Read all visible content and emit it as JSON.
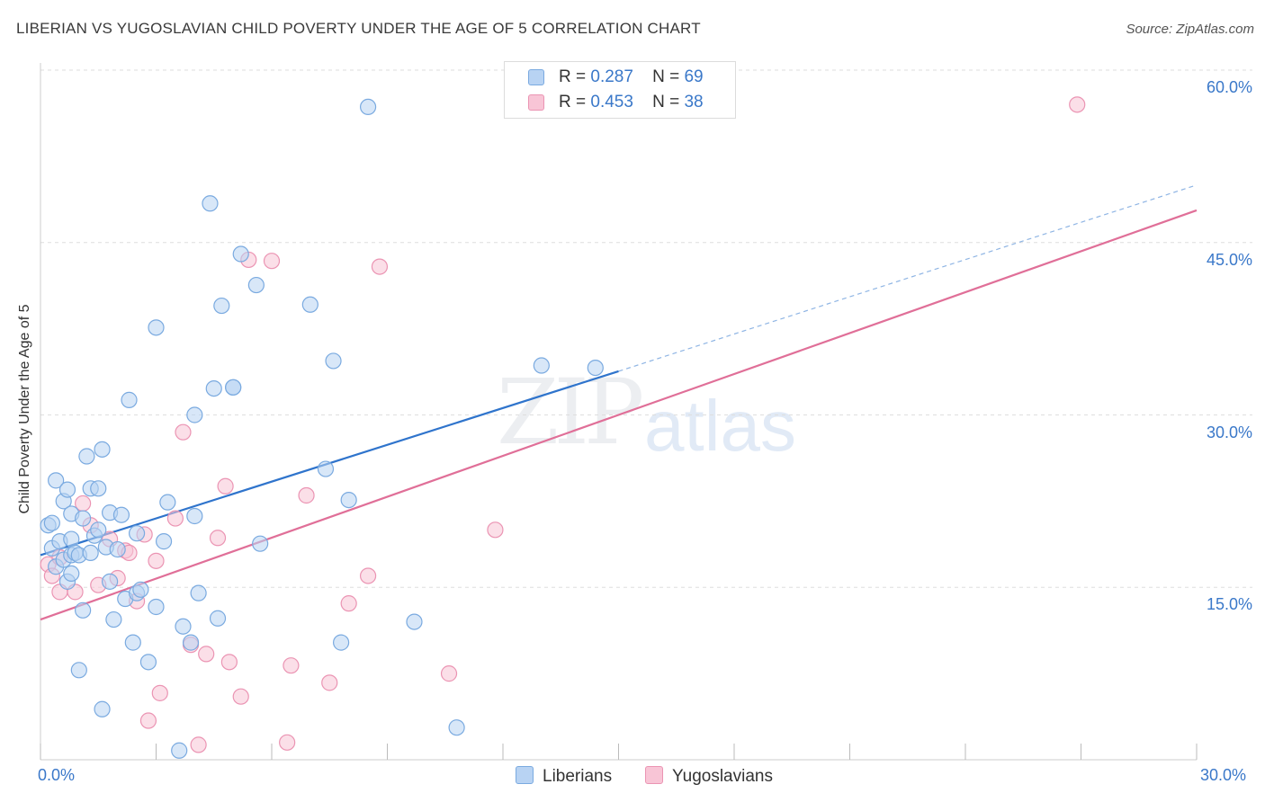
{
  "header": {
    "title": "LIBERIAN VS YUGOSLAVIAN CHILD POVERTY UNDER THE AGE OF 5 CORRELATION CHART",
    "source": "Source: ZipAtlas.com"
  },
  "watermark": {
    "part1": "ZIP",
    "part2": "atlas"
  },
  "legend": {
    "r_label": "R =",
    "n_label": "N =",
    "liberians": {
      "r": "0.287",
      "n": "69"
    },
    "yugoslavians": {
      "r": "0.453",
      "n": "38"
    }
  },
  "bottom_legend": {
    "liberians": "Liberians",
    "yugoslavians": "Yugoslavians"
  },
  "colors": {
    "liberians_fill": "#b8d3f3",
    "liberians_stroke": "#7aaae0",
    "liberians_line": "#2f74cc",
    "yugoslavians_fill": "#f8c5d6",
    "yugoslavians_stroke": "#eb94b3",
    "yugoslavians_line": "#e06f98"
  },
  "chart_data": {
    "type": "scatter",
    "title": "LIBERIAN VS YUGOSLAVIAN CHILD POVERTY UNDER THE AGE OF 5 CORRELATION CHART",
    "xlabel": "",
    "ylabel": "Child Poverty Under the Age of 5",
    "xlim": [
      0,
      30
    ],
    "ylim": [
      0,
      60
    ],
    "x_tick_labels": [
      "0.0%",
      "30.0%"
    ],
    "y_ticks": [
      15,
      30,
      45,
      60
    ],
    "y_tick_labels": [
      "15.0%",
      "30.0%",
      "45.0%",
      "60.0%"
    ],
    "grid": true,
    "legend_placement": "top-center",
    "series": [
      {
        "name": "Liberians",
        "trend": {
          "x": [
            0,
            15
          ],
          "y": [
            17.8,
            33.8
          ],
          "dashed_extension": {
            "x": [
              15,
              30
            ],
            "y": [
              33.8,
              50
            ]
          }
        },
        "points": [
          [
            0.2,
            20.4
          ],
          [
            0.3,
            18.4
          ],
          [
            0.3,
            20.6
          ],
          [
            0.4,
            16.8
          ],
          [
            0.4,
            24.3
          ],
          [
            0.5,
            19.0
          ],
          [
            0.6,
            17.4
          ],
          [
            0.6,
            22.5
          ],
          [
            0.7,
            15.5
          ],
          [
            0.7,
            23.5
          ],
          [
            0.8,
            16.2
          ],
          [
            0.8,
            19.2
          ],
          [
            0.8,
            21.4
          ],
          [
            0.8,
            17.8
          ],
          [
            0.9,
            18.0
          ],
          [
            1.0,
            17.8
          ],
          [
            1.0,
            7.8
          ],
          [
            1.1,
            21.0
          ],
          [
            1.1,
            13.0
          ],
          [
            1.2,
            26.4
          ],
          [
            1.3,
            18.0
          ],
          [
            1.3,
            23.6
          ],
          [
            1.4,
            19.5
          ],
          [
            1.5,
            20.0
          ],
          [
            1.5,
            23.6
          ],
          [
            1.6,
            4.4
          ],
          [
            1.6,
            27.0
          ],
          [
            1.7,
            18.5
          ],
          [
            1.8,
            21.5
          ],
          [
            1.8,
            15.5
          ],
          [
            1.9,
            12.2
          ],
          [
            2.0,
            18.3
          ],
          [
            2.1,
            21.3
          ],
          [
            2.2,
            14.0
          ],
          [
            2.3,
            31.3
          ],
          [
            2.4,
            10.2
          ],
          [
            2.5,
            14.5
          ],
          [
            2.5,
            19.7
          ],
          [
            2.6,
            14.8
          ],
          [
            2.8,
            8.5
          ],
          [
            3.0,
            13.3
          ],
          [
            3.0,
            37.6
          ],
          [
            3.2,
            19.0
          ],
          [
            3.3,
            22.4
          ],
          [
            3.6,
            0.8
          ],
          [
            3.7,
            11.6
          ],
          [
            3.9,
            10.2
          ],
          [
            4.0,
            30.0
          ],
          [
            4.0,
            21.2
          ],
          [
            4.1,
            14.5
          ],
          [
            4.4,
            48.4
          ],
          [
            4.5,
            32.3
          ],
          [
            4.6,
            12.3
          ],
          [
            4.7,
            39.5
          ],
          [
            5.0,
            32.4
          ],
          [
            5.0,
            32.4
          ],
          [
            5.2,
            44.0
          ],
          [
            5.6,
            41.3
          ],
          [
            5.7,
            18.8
          ],
          [
            7.0,
            39.6
          ],
          [
            7.4,
            25.3
          ],
          [
            7.6,
            34.7
          ],
          [
            7.8,
            10.2
          ],
          [
            8.0,
            22.6
          ],
          [
            8.5,
            56.8
          ],
          [
            9.7,
            12.0
          ],
          [
            10.8,
            2.8
          ],
          [
            13.0,
            34.3
          ],
          [
            14.4,
            34.1
          ]
        ]
      },
      {
        "name": "Yugoslavians",
        "trend": {
          "x": [
            0,
            30
          ],
          "y": [
            12.2,
            47.8
          ]
        },
        "points": [
          [
            0.2,
            17.0
          ],
          [
            0.3,
            16.0
          ],
          [
            0.5,
            17.6
          ],
          [
            0.5,
            14.6
          ],
          [
            0.9,
            14.6
          ],
          [
            1.1,
            22.3
          ],
          [
            1.3,
            20.4
          ],
          [
            1.5,
            15.2
          ],
          [
            1.8,
            19.2
          ],
          [
            2.0,
            15.8
          ],
          [
            2.2,
            18.2
          ],
          [
            2.3,
            18.0
          ],
          [
            2.5,
            13.8
          ],
          [
            2.7,
            19.6
          ],
          [
            2.8,
            3.4
          ],
          [
            3.0,
            17.3
          ],
          [
            3.1,
            5.8
          ],
          [
            3.5,
            21.0
          ],
          [
            3.7,
            28.5
          ],
          [
            3.9,
            10.0
          ],
          [
            4.1,
            1.3
          ],
          [
            4.3,
            9.2
          ],
          [
            4.6,
            19.3
          ],
          [
            4.8,
            23.8
          ],
          [
            4.9,
            8.5
          ],
          [
            5.2,
            5.5
          ],
          [
            5.4,
            43.5
          ],
          [
            6.0,
            43.4
          ],
          [
            6.4,
            1.5
          ],
          [
            6.5,
            8.2
          ],
          [
            6.9,
            23.0
          ],
          [
            7.5,
            6.7
          ],
          [
            8.0,
            13.6
          ],
          [
            8.5,
            16.0
          ],
          [
            8.8,
            42.9
          ],
          [
            10.6,
            7.5
          ],
          [
            11.8,
            20.0
          ],
          [
            26.9,
            57.0
          ]
        ]
      }
    ]
  }
}
